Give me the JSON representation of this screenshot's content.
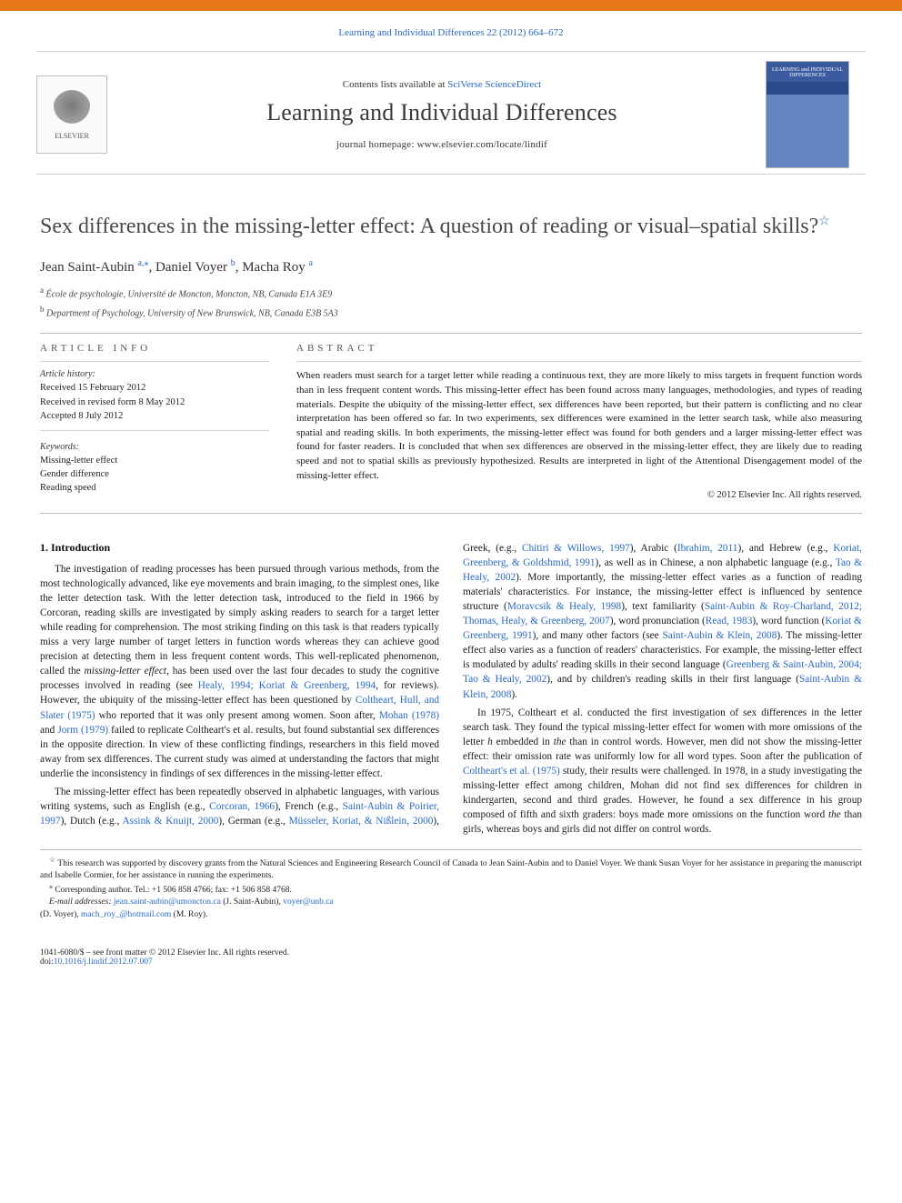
{
  "header": {
    "top_link_pre": "",
    "top_link": "Learning and Individual Differences 22 (2012) 664–672",
    "contents_pre": "Contents lists available at ",
    "contents_link": "SciVerse ScienceDirect",
    "journal_name": "Learning and Individual Differences",
    "journal_home_pre": "journal homepage: ",
    "journal_home_url": "www.elsevier.com/locate/lindif",
    "elsevier_label": "ELSEVIER",
    "cover_label": "LEARNING and INDIVIDUAL DIFFERENCES"
  },
  "article": {
    "title": "Sex differences in the missing-letter effect: A question of reading or visual–spatial skills?",
    "star": "☆",
    "authors_html_parts": {
      "a1_name": "Jean Saint-Aubin ",
      "a1_sup": "a,",
      "a1_ast": "⁎",
      "sep1": ", ",
      "a2_name": "Daniel Voyer ",
      "a2_sup": "b",
      "sep2": ", ",
      "a3_name": "Macha Roy ",
      "a3_sup": "a"
    },
    "affiliations": [
      {
        "sup": "a",
        "text": " École de psychologie, Université de Moncton, Moncton, NB, Canada E1A 3E9"
      },
      {
        "sup": "b",
        "text": " Department of Psychology, University of New Brunswick, NB, Canada E3B 5A3"
      }
    ]
  },
  "info": {
    "article_info_label": "article info",
    "abstract_label": "abstract",
    "history_label": "Article history:",
    "history": [
      "Received 15 February 2012",
      "Received in revised form 8 May 2012",
      "Accepted 8 July 2012"
    ],
    "keywords_label": "Keywords:",
    "keywords": [
      "Missing-letter effect",
      "Gender difference",
      "Reading speed"
    ],
    "abstract": "When readers must search for a target letter while reading a continuous text, they are more likely to miss targets in frequent function words than in less frequent content words. This missing-letter effect has been found across many languages, methodologies, and types of reading materials. Despite the ubiquity of the missing-letter effect, sex differences have been reported, but their pattern is conflicting and no clear interpretation has been offered so far. In two experiments, sex differences were examined in the letter search task, while also measuring spatial and reading skills. In both experiments, the missing-letter effect was found for both genders and a larger missing-letter effect was found for faster readers. It is concluded that when sex differences are observed in the missing-letter effect, they are likely due to reading speed and not to spatial skills as previously hypothesized. Results are interpreted in light of the Attentional Disengagement model of the missing-letter effect.",
    "copyright": "© 2012 Elsevier Inc. All rights reserved."
  },
  "body": {
    "heading": "1. Introduction",
    "p1_a": "The investigation of reading processes has been pursued through various methods, from the most technologically advanced, like eye movements and brain imaging, to the simplest ones, like the letter detection task. With the letter detection task, introduced to the field in 1966 by Corcoran, reading skills are investigated by simply asking readers to search for a target letter while reading for comprehension. The most striking finding on this task is that readers typically miss a very large number of target letters in function words whereas they can achieve good precision at detecting them in less frequent content words. This well-replicated phenomenon, called the ",
    "p1_em": "missing-letter effect",
    "p1_b": ", has been used over the last four decades to study the cognitive processes involved in reading (see ",
    "p1_c1": "Healy, 1994; Koriat & Greenberg, 1994",
    "p1_c": ", for reviews). However, the ubiquity of the missing-letter effect has been questioned by ",
    "p1_c2": "Coltheart, Hull, and Slater (1975)",
    "p1_d": " who reported that it was only present among women. Soon after, ",
    "p1_c3": "Mohan (1978)",
    "p1_e": " and ",
    "p1_c4": "Jorm (1979)",
    "p1_f": " failed to replicate Coltheart's et al. results, but found substantial sex differences in the opposite direction. In view of these conflicting findings, researchers in this field moved away from sex differences. The current study was aimed at understanding the factors that might underlie the inconsistency in findings of sex differences in the missing-letter effect.",
    "p2_a": "The missing-letter effect has been repeatedly observed in alphabetic languages, with various writing systems, such as English (e.g., ",
    "p2_c1": "Corcoran, 1966",
    "p2_b": "), French (e.g., ",
    "p2_c2": "Saint-Aubin & Poirier, 1997",
    "p2_c": "), Dutch (e.g., ",
    "p2_c3": "Assink & Knuijt, 2000",
    "p2_d": "), German (e.g., ",
    "p2_c4": "Müsseler, Koriat, & Nißlein, 2000",
    "p2_e": "), Greek, (e.g., ",
    "p2_c5": "Chitiri & Willows, 1997",
    "p2_f": "), Arabic (",
    "p2_c6": "Ibrahim, 2011",
    "p2_g": "), and Hebrew (e.g., ",
    "p2_c7": "Koriat, Greenberg, & Goldshmid, 1991",
    "p2_h": "), as well as in Chinese, a non alphabetic language (e.g., ",
    "p2_c8": "Tao & Healy, 2002",
    "p2_i": "). More importantly, the missing-letter effect varies as a function of reading materials' characteristics. For instance, the missing-letter effect is influenced by sentence structure (",
    "p2_c9": "Moravcsik & Healy, 1998",
    "p2_j": "), text familiarity (",
    "p2_c10": "Saint-Aubin & Roy-Charland, 2012; Thomas, Healy, & Greenberg, 2007",
    "p2_k": "), word pronunciation (",
    "p2_c11": "Read, 1983",
    "p2_l": "), word function (",
    "p2_c12": "Koriat & Greenberg, 1991",
    "p2_m": "), and many other factors (see ",
    "p2_c13": "Saint-Aubin & Klein, 2008",
    "p2_n": "). The missing-letter effect also varies as a function of readers' characteristics. For example, the missing-letter effect is modulated by adults' reading skills in their second language (",
    "p2_c14": "Greenberg & Saint-Aubin, 2004; Tao & Healy, 2002",
    "p2_o": "), and by children's reading skills in their first language (",
    "p2_c15": "Saint-Aubin & Klein, 2008",
    "p2_p": ").",
    "p3_a": "In 1975, Coltheart et al. conducted the first investigation of sex differences in the letter search task. They found the typical missing-letter effect for women with more omissions of the letter ",
    "p3_em1": "h",
    "p3_b": " embedded in ",
    "p3_em2": "the",
    "p3_c": " than in control words. However, men did not show the missing-letter effect: their omission rate was uniformly low for all word types. Soon after the publication of ",
    "p3_c1": "Coltheart's et al. (1975)",
    "p3_d": " study, their results were challenged. In 1978, in a study investigating the missing-letter effect among children, Mohan did not find sex differences for children in kindergarten, second and third grades. However, he found a sex difference in his group composed of fifth and sixth graders: boys made more omissions on the function word ",
    "p3_em3": "the",
    "p3_e": " than girls, whereas boys and girls did not differ on control words."
  },
  "footnotes": {
    "fn1_sym": "☆",
    "fn1": " This research was supported by discovery grants from the Natural Sciences and Engineering Research Council of Canada to Jean Saint-Aubin and to Daniel Voyer. We thank Susan Voyer for her assistance in preparing the manuscript and Isabelle Cormier, for her assistance in running the experiments.",
    "fn2_sym": "⁎",
    "fn2": " Corresponding author. Tel.: +1 506 858 4766; fax: +1 506 858 4768.",
    "email_label": "E-mail addresses: ",
    "e1": "jean.saint-aubin@umoncton.ca",
    "e1_who": " (J. Saint-Aubin), ",
    "e2": "voyer@unb.ca",
    "e2_who": " (D. Voyer), ",
    "e3": "mach_roy_@hotmail.com",
    "e3_who": " (M. Roy)."
  },
  "bottom": {
    "left1": "1041-6080/$ – see front matter © 2012 Elsevier Inc. All rights reserved.",
    "left2_pre": "doi:",
    "left2": "10.1016/j.lindif.2012.07.007"
  },
  "colors": {
    "accent": "#e67817",
    "link": "#2969c4",
    "rule": "#bcbcbc",
    "text": "#1a1a1a"
  }
}
